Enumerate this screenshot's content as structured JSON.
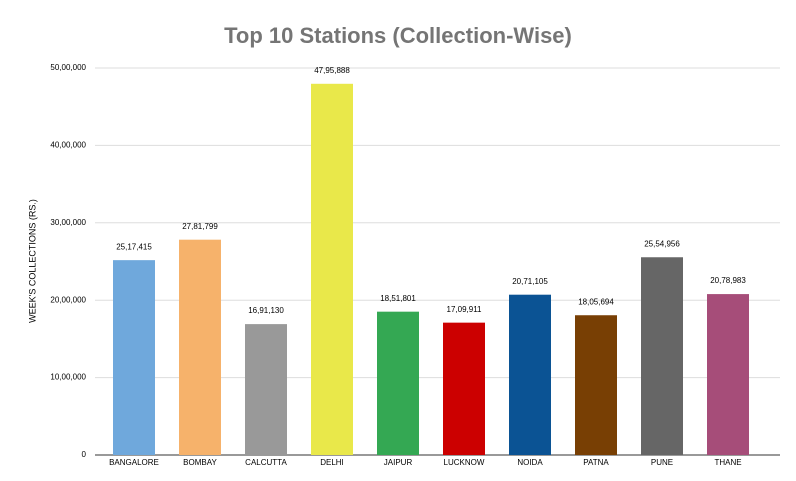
{
  "chart_data": {
    "type": "bar",
    "title": "Top 10 Stations (Collection-Wise)",
    "y_label": "WEEK'S COLLECTIONS (RS.)",
    "categories": [
      "BANGALORE",
      "BOMBAY",
      "CALCUTTA",
      "DELHI",
      "JAIPUR",
      "LUCKNOW",
      "NOIDA",
      "PATNA",
      "PUNE",
      "THANE"
    ],
    "values": [
      2517415,
      2781799,
      1691130,
      4795888,
      1851801,
      1709911,
      2071105,
      1805694,
      2554956,
      2078983
    ],
    "value_labels": [
      "25,17,415",
      "27,81,799",
      "16,91,130",
      "47,95,888",
      "18,51,801",
      "17,09,911",
      "20,71,105",
      "18,05,694",
      "25,54,956",
      "20,78,983"
    ],
    "colors": [
      "#6fa8dc",
      "#f6b26b",
      "#999999",
      "#e9e84a",
      "#34a853",
      "#cc0000",
      "#0b5394",
      "#783f04",
      "#666666",
      "#a64d79"
    ],
    "ylim": [
      0,
      5000000
    ],
    "yticks": [
      0,
      {
        "value": 1000000,
        "label": "10,00,000"
      },
      {
        "value": 2000000,
        "label": "20,00,000"
      },
      {
        "value": 3000000,
        "label": "30,00,000"
      },
      {
        "value": 4000000,
        "label": "40,00,000"
      },
      {
        "value": 5000000,
        "label": "50,00,000"
      }
    ],
    "grid": true
  }
}
